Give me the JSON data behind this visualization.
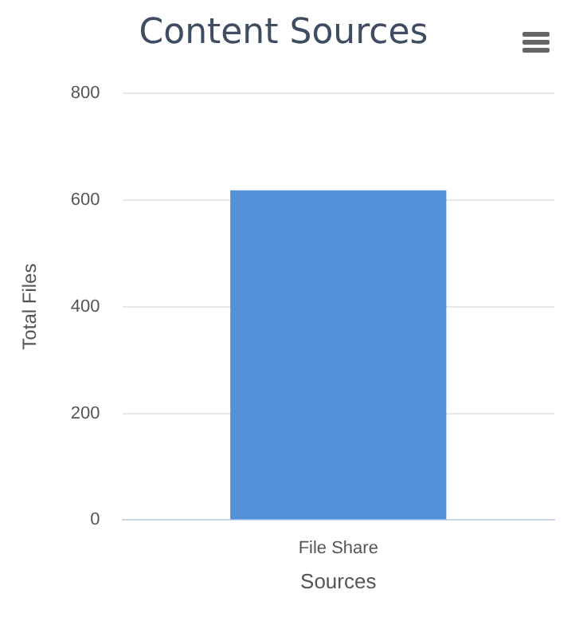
{
  "chart_data": {
    "type": "bar",
    "title": "Content Sources",
    "xlabel": "Sources",
    "ylabel": "Total Files",
    "categories": [
      "File Share"
    ],
    "values": [
      618
    ],
    "color": "#5591d8",
    "ylim": [
      0,
      800
    ],
    "yticks": [
      0,
      200,
      400,
      600,
      800
    ],
    "grid": "y",
    "legend": false
  }
}
